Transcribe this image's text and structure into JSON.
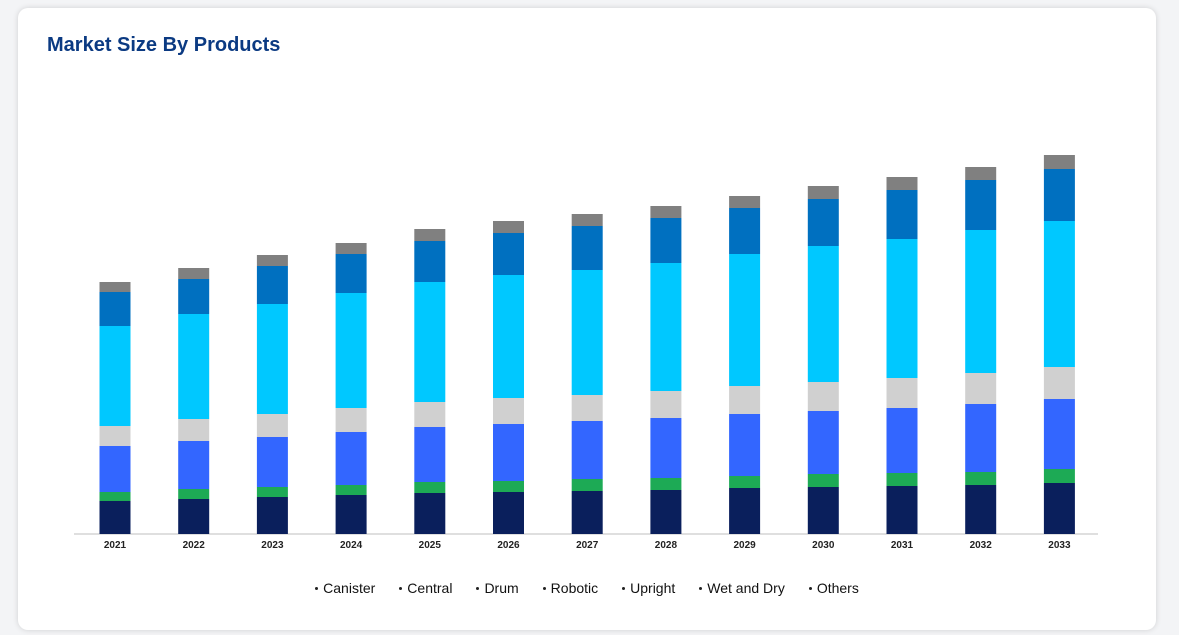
{
  "title": "Market Size By Products",
  "chart_data": {
    "type": "bar",
    "stacked": true,
    "title": "Market Size By Products",
    "xlabel": "",
    "ylabel": "",
    "y_axis_shown": false,
    "ylim": [
      0,
      380
    ],
    "grid": false,
    "legend_position": "bottom",
    "categories": [
      "2021",
      "2022",
      "2023",
      "2024",
      "2025",
      "2026",
      "2027",
      "2028",
      "2029",
      "2030",
      "2031",
      "2032",
      "2033"
    ],
    "series": [
      {
        "name": "Canister",
        "color": "#0a1f5c",
        "values": [
          33,
          35,
          37,
          39,
          41,
          42,
          43,
          44,
          46,
          47,
          48,
          49,
          51
        ]
      },
      {
        "name": "Central",
        "color": "#1daa55",
        "values": [
          9,
          10,
          10,
          10,
          11,
          11,
          12,
          12,
          12,
          13,
          13,
          13,
          14
        ]
      },
      {
        "name": "Drum",
        "color": "#3366ff",
        "values": [
          46,
          48,
          50,
          53,
          55,
          57,
          58,
          60,
          62,
          63,
          65,
          68,
          70
        ]
      },
      {
        "name": "Robotic",
        "color": "#d0d0d0",
        "values": [
          20,
          22,
          23,
          24,
          25,
          26,
          26,
          27,
          28,
          29,
          30,
          31,
          32
        ]
      },
      {
        "name": "Upright",
        "color": "#00c8ff",
        "values": [
          100,
          105,
          110,
          115,
          120,
          123,
          125,
          128,
          132,
          136,
          139,
          143,
          146
        ]
      },
      {
        "name": "Wet and Dry",
        "color": "#0070c0",
        "values": [
          34,
          35,
          38,
          39,
          41,
          42,
          44,
          45,
          46,
          47,
          49,
          50,
          52
        ]
      },
      {
        "name": "Others",
        "color": "#808080",
        "values": [
          10,
          11,
          11,
          11,
          12,
          12,
          12,
          12,
          12,
          13,
          13,
          13,
          14
        ]
      }
    ]
  }
}
